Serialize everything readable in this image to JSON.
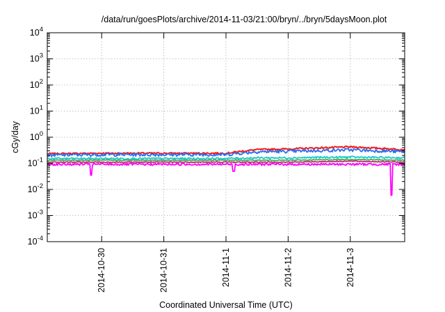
{
  "chart_data": {
    "type": "line",
    "title": "/data/run/goesPlots/archive/2014-11-03/21:00/bryn/../bryn/5daysMoon.plot",
    "xlabel": "Coordinated Universal Time (UTC)",
    "ylabel": "cGy/day",
    "yscale": "log",
    "ylim": [
      0.0001,
      10000
    ],
    "xlim": [
      "2014-10-29T03:00",
      "2014-11-03T21:00"
    ],
    "grid": true,
    "legend": "none",
    "y_ticks": [
      {
        "value": 0.0001,
        "base": "10",
        "exp": "-4"
      },
      {
        "value": 0.001,
        "base": "10",
        "exp": "-3"
      },
      {
        "value": 0.01,
        "base": "10",
        "exp": "-2"
      },
      {
        "value": 0.1,
        "base": "10",
        "exp": "-1"
      },
      {
        "value": 1,
        "base": "10",
        "exp": "0"
      },
      {
        "value": 10,
        "base": "10",
        "exp": "1"
      },
      {
        "value": 100,
        "base": "10",
        "exp": "2"
      },
      {
        "value": 1000,
        "base": "10",
        "exp": "3"
      },
      {
        "value": 10000,
        "base": "10",
        "exp": "4"
      }
    ],
    "x_ticks": [
      "2014-10-30",
      "2014-10-31",
      "2014-11-1",
      "2014-11-2",
      "2014-11-3"
    ],
    "x_tick_dates": [
      "2014-10-30T00:00",
      "2014-10-31T00:00",
      "2014-11-01T00:00",
      "2014-11-02T00:00",
      "2014-11-03T00:00"
    ],
    "x_knots": [
      "2014-10-29T03:00",
      "2014-10-30T00:00",
      "2014-10-31T00:00",
      "2014-11-01T00:00",
      "2014-11-01T12:00",
      "2014-11-02T00:00",
      "2014-11-03T00:00",
      "2014-11-03T21:00"
    ],
    "series": [
      {
        "color": "#ee1c1c",
        "values": [
          0.23,
          0.24,
          0.24,
          0.24,
          0.33,
          0.35,
          0.42,
          0.33
        ],
        "dips": [],
        "noise": 0.07
      },
      {
        "color": "#2b6cf0",
        "values": [
          0.2,
          0.21,
          0.21,
          0.21,
          0.27,
          0.28,
          0.32,
          0.27
        ],
        "dips": [],
        "noise": 0.14
      },
      {
        "color": "#16c8d0",
        "values": [
          0.15,
          0.15,
          0.15,
          0.15,
          0.16,
          0.16,
          0.17,
          0.16
        ],
        "dips": [],
        "noise": 0.08
      },
      {
        "color": "#3cb44b",
        "values": [
          0.13,
          0.13,
          0.13,
          0.13,
          0.13,
          0.13,
          0.14,
          0.13
        ],
        "dips": [],
        "noise": 0.04
      },
      {
        "color": "#c8286e",
        "values": [
          0.11,
          0.11,
          0.11,
          0.11,
          0.11,
          0.11,
          0.12,
          0.11
        ],
        "dips": [],
        "noise": 0.04
      },
      {
        "color": "#ff00ff",
        "values": [
          0.09,
          0.09,
          0.09,
          0.09,
          0.09,
          0.09,
          0.09,
          0.09
        ],
        "dips": [
          [
            "2014-10-29T20:00",
            0.035
          ],
          [
            "2014-11-01T03:00",
            0.05
          ],
          [
            "2014-11-03T16:00",
            0.006
          ]
        ],
        "noise": 0.1
      }
    ]
  }
}
